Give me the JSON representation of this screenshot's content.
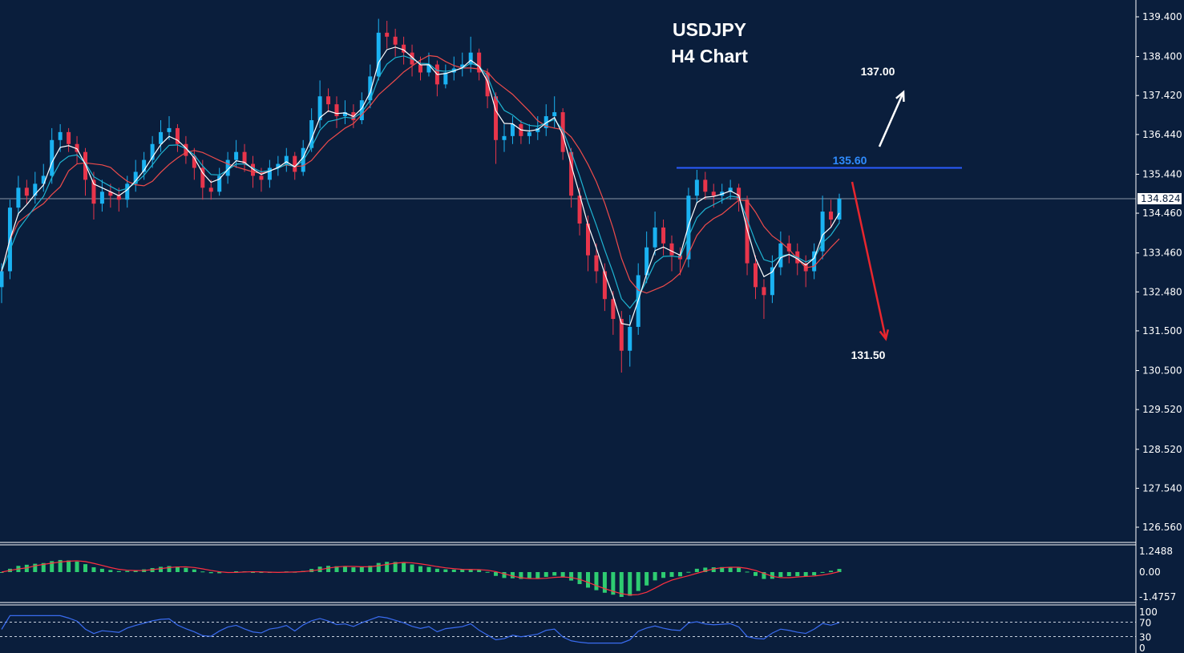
{
  "chart_data": {
    "type": "candlestick",
    "symbol_title": "USDJPY",
    "timeframe_title": "H4 Chart",
    "colors": {
      "background": "#0a1e3c",
      "bull": "#1ab2f2",
      "bear": "#e8354b",
      "ma_fast": "#ffffff",
      "ma_mid": "#1fb5d3",
      "ma_slow": "#ee4b4b",
      "macd_hist": "#2ecc71",
      "macd_signal": "#ff3040",
      "rsi": "#3a6cf0",
      "resistance": "#2a5cff",
      "resistance_label": "#2f8cff",
      "up_arrow": "#ffffff",
      "down_arrow": "#e8262e"
    },
    "ylim": [
      126.1,
      139.75
    ],
    "y_ticks": [
      "139.400",
      "138.400",
      "137.420",
      "136.440",
      "135.440",
      "134.460",
      "133.460",
      "132.480",
      "131.500",
      "130.500",
      "129.520",
      "128.520",
      "127.540",
      "126.560"
    ],
    "current_price": "134.824",
    "ohlc": [
      [
        132.6,
        133.2,
        132.2,
        133.0
      ],
      [
        133.0,
        134.8,
        132.8,
        134.6
      ],
      [
        134.6,
        135.4,
        134.4,
        135.1
      ],
      [
        135.1,
        135.3,
        134.7,
        134.9
      ],
      [
        134.9,
        135.5,
        134.7,
        135.2
      ],
      [
        135.2,
        135.7,
        135.0,
        135.4
      ],
      [
        135.4,
        136.6,
        135.2,
        136.3
      ],
      [
        136.3,
        136.7,
        136.0,
        136.5
      ],
      [
        136.5,
        136.6,
        136.0,
        136.2
      ],
      [
        136.2,
        136.4,
        135.7,
        136.0
      ],
      [
        136.0,
        136.1,
        134.9,
        135.3
      ],
      [
        135.3,
        135.5,
        134.3,
        134.7
      ],
      [
        134.7,
        135.3,
        134.5,
        135.0
      ],
      [
        135.0,
        135.2,
        134.6,
        134.9
      ],
      [
        134.9,
        135.1,
        134.5,
        134.8
      ],
      [
        134.8,
        135.4,
        134.6,
        135.2
      ],
      [
        135.2,
        135.8,
        135.0,
        135.5
      ],
      [
        135.5,
        136.0,
        135.3,
        135.8
      ],
      [
        135.8,
        136.4,
        135.6,
        136.2
      ],
      [
        136.2,
        136.8,
        136.0,
        136.5
      ],
      [
        136.5,
        136.9,
        136.3,
        136.6
      ],
      [
        136.6,
        136.7,
        136.0,
        136.2
      ],
      [
        136.2,
        136.4,
        135.7,
        135.9
      ],
      [
        135.9,
        136.1,
        135.3,
        135.6
      ],
      [
        135.6,
        135.8,
        134.8,
        135.1
      ],
      [
        135.1,
        135.3,
        134.8,
        135.0
      ],
      [
        135.0,
        135.6,
        134.9,
        135.4
      ],
      [
        135.4,
        136.0,
        135.2,
        135.8
      ],
      [
        135.8,
        136.3,
        135.6,
        136.0
      ],
      [
        136.0,
        136.2,
        135.5,
        135.7
      ],
      [
        135.7,
        135.9,
        135.1,
        135.4
      ],
      [
        135.4,
        135.6,
        135.0,
        135.3
      ],
      [
        135.3,
        135.8,
        135.1,
        135.6
      ],
      [
        135.6,
        135.9,
        135.4,
        135.7
      ],
      [
        135.7,
        136.1,
        135.5,
        135.9
      ],
      [
        135.9,
        136.0,
        135.3,
        135.5
      ],
      [
        135.5,
        136.3,
        135.4,
        136.1
      ],
      [
        136.1,
        137.1,
        136.0,
        136.8
      ],
      [
        136.8,
        137.8,
        136.6,
        137.4
      ],
      [
        137.4,
        137.6,
        137.0,
        137.2
      ],
      [
        137.2,
        137.4,
        136.6,
        136.9
      ],
      [
        136.9,
        137.3,
        136.7,
        137.0
      ],
      [
        137.0,
        137.2,
        136.6,
        136.8
      ],
      [
        136.8,
        137.5,
        136.7,
        137.3
      ],
      [
        137.3,
        138.2,
        137.1,
        137.9
      ],
      [
        137.9,
        139.35,
        137.8,
        139.0
      ],
      [
        139.0,
        139.3,
        138.6,
        138.9
      ],
      [
        138.9,
        139.1,
        138.4,
        138.7
      ],
      [
        138.7,
        138.9,
        138.2,
        138.5
      ],
      [
        138.5,
        138.7,
        137.9,
        138.2
      ],
      [
        138.2,
        138.4,
        137.8,
        138.0
      ],
      [
        138.0,
        138.5,
        137.9,
        138.2
      ],
      [
        138.2,
        138.3,
        137.4,
        137.7
      ],
      [
        137.7,
        138.2,
        137.6,
        138.0
      ],
      [
        138.0,
        138.4,
        137.8,
        138.1
      ],
      [
        138.1,
        138.5,
        137.9,
        138.2
      ],
      [
        138.2,
        138.9,
        138.0,
        138.5
      ],
      [
        138.5,
        138.6,
        137.8,
        138.0
      ],
      [
        138.0,
        138.1,
        137.1,
        137.4
      ],
      [
        137.4,
        137.5,
        135.7,
        136.3
      ],
      [
        136.3,
        136.7,
        136.0,
        136.4
      ],
      [
        136.4,
        136.9,
        136.2,
        136.7
      ],
      [
        136.7,
        136.8,
        136.2,
        136.4
      ],
      [
        136.4,
        136.7,
        136.2,
        136.5
      ],
      [
        136.5,
        136.9,
        136.3,
        136.6
      ],
      [
        136.6,
        137.2,
        136.4,
        136.9
      ],
      [
        136.9,
        137.4,
        136.6,
        137.0
      ],
      [
        137.0,
        137.1,
        135.8,
        136.0
      ],
      [
        136.0,
        136.1,
        134.6,
        134.9
      ],
      [
        134.9,
        135.1,
        133.9,
        134.2
      ],
      [
        134.2,
        134.4,
        133.0,
        133.4
      ],
      [
        133.4,
        133.7,
        132.7,
        133.0
      ],
      [
        133.0,
        133.2,
        132.0,
        132.3
      ],
      [
        132.3,
        132.5,
        131.4,
        131.8
      ],
      [
        131.8,
        132.0,
        130.45,
        131.0
      ],
      [
        131.0,
        131.9,
        130.6,
        131.6
      ],
      [
        131.6,
        133.2,
        131.4,
        132.9
      ],
      [
        132.9,
        134.0,
        132.7,
        133.6
      ],
      [
        133.6,
        134.5,
        133.4,
        134.1
      ],
      [
        134.1,
        134.3,
        133.4,
        133.7
      ],
      [
        133.7,
        133.9,
        133.0,
        133.4
      ],
      [
        133.4,
        133.6,
        132.9,
        133.3
      ],
      [
        133.3,
        135.1,
        133.1,
        134.9
      ],
      [
        134.9,
        135.55,
        134.7,
        135.3
      ],
      [
        135.3,
        135.5,
        134.8,
        135.0
      ],
      [
        135.0,
        135.2,
        134.6,
        134.9
      ],
      [
        134.9,
        135.2,
        134.7,
        135.0
      ],
      [
        135.0,
        135.3,
        134.8,
        135.1
      ],
      [
        135.1,
        135.2,
        134.5,
        134.8
      ],
      [
        134.8,
        134.9,
        132.9,
        133.2
      ],
      [
        133.2,
        133.4,
        132.3,
        132.6
      ],
      [
        132.6,
        132.8,
        131.8,
        132.4
      ],
      [
        132.4,
        133.4,
        132.2,
        133.1
      ],
      [
        133.1,
        134.0,
        132.9,
        133.7
      ],
      [
        133.7,
        133.9,
        133.2,
        133.5
      ],
      [
        133.5,
        133.7,
        132.9,
        133.2
      ],
      [
        133.2,
        133.4,
        132.6,
        133.0
      ],
      [
        133.0,
        133.7,
        132.8,
        133.5
      ],
      [
        133.5,
        134.9,
        133.3,
        134.5
      ],
      [
        134.5,
        134.8,
        134.1,
        134.3
      ],
      [
        134.3,
        134.95,
        134.2,
        134.824
      ]
    ],
    "annotations": {
      "resistance": {
        "price": 135.6,
        "label": "135.60"
      },
      "up_target": {
        "price": 137.0,
        "label": "137.00"
      },
      "down_target": {
        "price": 131.5,
        "label": "131.50"
      }
    },
    "macd": {
      "y_ticks": [
        "1.2488",
        "0.00",
        "-1.4757"
      ],
      "ylim": [
        -1.4757,
        1.2488
      ]
    },
    "rsi": {
      "y_ticks": [
        "100",
        "70",
        "30",
        "0"
      ],
      "levels": [
        70,
        30
      ],
      "ylim": [
        0,
        100
      ]
    }
  }
}
